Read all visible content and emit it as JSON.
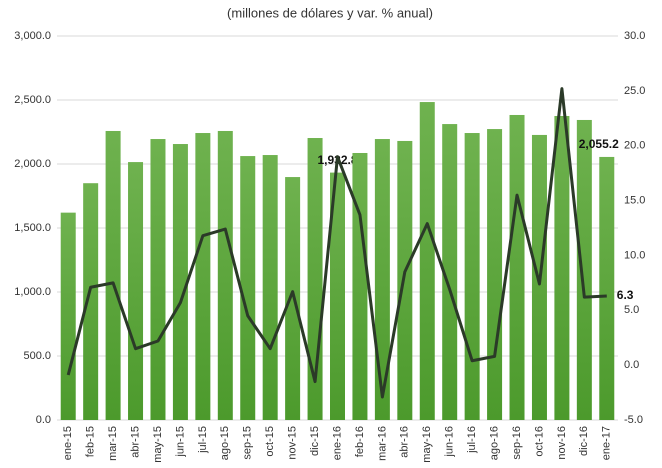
{
  "chart_data": {
    "type": "bar_line",
    "title": "(millones de dólares y var. % anual)",
    "categories": [
      "ene-15",
      "feb-15",
      "mar-15",
      "abr-15",
      "may-15",
      "jun-15",
      "jul-15",
      "ago-15",
      "sep-15",
      "oct-15",
      "nov-15",
      "dic-15",
      "ene-16",
      "feb-16",
      "mar-16",
      "abr-16",
      "may-16",
      "jun-16",
      "jul-16",
      "ago-16",
      "sep-16",
      "oct-16",
      "nov-16",
      "dic-16",
      "ene-17"
    ],
    "series": [
      {
        "type": "bar",
        "color": "#5ea83e",
        "values": [
          1620,
          1850,
          2258,
          2015,
          2195,
          2156,
          2242,
          2258,
          2062,
          2070,
          1898,
          2203,
          1932.8,
          2086,
          2195,
          2180,
          2484,
          2312,
          2242,
          2273,
          2383,
          2227,
          2375,
          2344,
          2055.2
        ],
        "value_labels": [
          null,
          null,
          null,
          null,
          null,
          null,
          null,
          null,
          null,
          null,
          null,
          null,
          "1,932.8",
          null,
          null,
          null,
          null,
          null,
          null,
          null,
          null,
          null,
          null,
          null,
          "2,055.2"
        ]
      },
      {
        "type": "line",
        "axis": "y2",
        "color": "#2b3a28",
        "values": [
          -0.9,
          7.1,
          7.5,
          1.5,
          2.2,
          5.7,
          11.8,
          12.4,
          4.5,
          1.5,
          6.7,
          -1.5,
          19.0,
          13.7,
          -2.9,
          8.5,
          12.9,
          6.9,
          0.4,
          0.8,
          15.5,
          7.4,
          25.2,
          6.2,
          6.3
        ],
        "value_labels": [
          null,
          null,
          null,
          null,
          null,
          null,
          null,
          null,
          null,
          null,
          null,
          null,
          null,
          null,
          null,
          null,
          null,
          null,
          null,
          null,
          null,
          null,
          null,
          null,
          "6.3"
        ]
      }
    ],
    "ylim": [
      0,
      3000
    ],
    "yticks": [
      {
        "value": 0,
        "label": "0.0"
      },
      {
        "value": 500,
        "label": "500.0"
      },
      {
        "value": 1000,
        "label": "1,000.0"
      },
      {
        "value": 1500,
        "label": "1,500.0"
      },
      {
        "value": 2000,
        "label": "2,000.0"
      },
      {
        "value": 2500,
        "label": "2,500.0"
      },
      {
        "value": 3000,
        "label": "3,000.0"
      }
    ],
    "y2lim": [
      -5,
      30
    ],
    "y2ticks": [
      {
        "value": -5,
        "label": "-5.0"
      },
      {
        "value": 0,
        "label": "0.0"
      },
      {
        "value": 5,
        "label": "5.0"
      },
      {
        "value": 10,
        "label": "10.0"
      },
      {
        "value": 15,
        "label": "15.0"
      },
      {
        "value": 20,
        "label": "20.0"
      },
      {
        "value": 25,
        "label": "25.0"
      },
      {
        "value": 30,
        "label": "30.0"
      }
    ],
    "grid": true
  }
}
